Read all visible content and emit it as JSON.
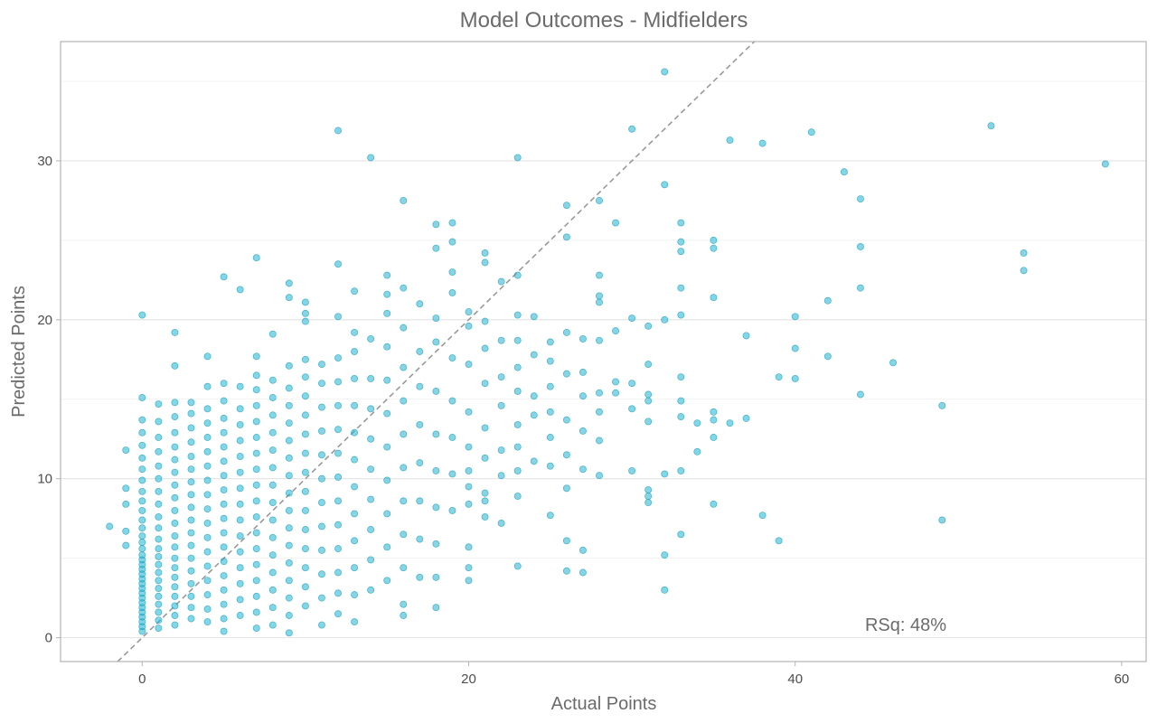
{
  "chart_data": {
    "type": "scatter",
    "title": "Model Outcomes - Midfielders",
    "xlabel": "Actual Points",
    "ylabel": "Predicted Points",
    "xlim": [
      -5,
      61.5
    ],
    "ylim": [
      -1.5,
      37.5
    ],
    "xticks": [
      0,
      20,
      40,
      60
    ],
    "yticks": [
      0,
      10,
      20,
      30
    ],
    "grid": true,
    "reference_line": {
      "style": "dashed",
      "slope": 1,
      "intercept": 0,
      "color": "#999999"
    },
    "annotation": "RSq: 48%",
    "point_color": "#1fb5d3",
    "point_stroke": "#1199b5",
    "points": [
      [
        -2,
        7.0
      ],
      [
        -1,
        5.8
      ],
      [
        -1,
        6.7
      ],
      [
        -1,
        8.4
      ],
      [
        -1,
        9.4
      ],
      [
        -1,
        11.8
      ],
      [
        0,
        0.4
      ],
      [
        0,
        0.7
      ],
      [
        0,
        1.0
      ],
      [
        0,
        1.3
      ],
      [
        0,
        1.6
      ],
      [
        0,
        1.9
      ],
      [
        0,
        2.2
      ],
      [
        0,
        2.5
      ],
      [
        0,
        2.8
      ],
      [
        0,
        3.1
      ],
      [
        0,
        3.4
      ],
      [
        0,
        3.7
      ],
      [
        0,
        4.0
      ],
      [
        0,
        4.3
      ],
      [
        0,
        4.6
      ],
      [
        0,
        4.9
      ],
      [
        0,
        5.2
      ],
      [
        0,
        5.6
      ],
      [
        0,
        6.0
      ],
      [
        0,
        6.4
      ],
      [
        0,
        6.9
      ],
      [
        0,
        7.4
      ],
      [
        0,
        8.0
      ],
      [
        0,
        8.6
      ],
      [
        0,
        9.2
      ],
      [
        0,
        9.9
      ],
      [
        0,
        10.6
      ],
      [
        0,
        11.3
      ],
      [
        0,
        12.1
      ],
      [
        0,
        12.9
      ],
      [
        0,
        13.7
      ],
      [
        0,
        15.1
      ],
      [
        0,
        20.3
      ],
      [
        1,
        0.6
      ],
      [
        1,
        1.1
      ],
      [
        1,
        1.6
      ],
      [
        1,
        2.1
      ],
      [
        1,
        2.6
      ],
      [
        1,
        3.1
      ],
      [
        1,
        3.6
      ],
      [
        1,
        4.1
      ],
      [
        1,
        4.6
      ],
      [
        1,
        5.1
      ],
      [
        1,
        5.6
      ],
      [
        1,
        6.2
      ],
      [
        1,
        6.9
      ],
      [
        1,
        7.6
      ],
      [
        1,
        8.4
      ],
      [
        1,
        9.2
      ],
      [
        1,
        10.0
      ],
      [
        1,
        10.8
      ],
      [
        1,
        11.7
      ],
      [
        1,
        12.6
      ],
      [
        1,
        13.6
      ],
      [
        1,
        14.7
      ],
      [
        2,
        0.8
      ],
      [
        2,
        1.4
      ],
      [
        2,
        2.0
      ],
      [
        2,
        2.6
      ],
      [
        2,
        3.2
      ],
      [
        2,
        3.8
      ],
      [
        2,
        4.4
      ],
      [
        2,
        5.0
      ],
      [
        2,
        5.7
      ],
      [
        2,
        6.4
      ],
      [
        2,
        7.2
      ],
      [
        2,
        8.0
      ],
      [
        2,
        8.8
      ],
      [
        2,
        9.6
      ],
      [
        2,
        10.4
      ],
      [
        2,
        11.2
      ],
      [
        2,
        12.0
      ],
      [
        2,
        12.9
      ],
      [
        2,
        13.9
      ],
      [
        2,
        14.8
      ],
      [
        2,
        17.1
      ],
      [
        2,
        19.2
      ],
      [
        3,
        1.2
      ],
      [
        3,
        1.9
      ],
      [
        3,
        2.6
      ],
      [
        3,
        3.4
      ],
      [
        3,
        4.2
      ],
      [
        3,
        5.0
      ],
      [
        3,
        5.8
      ],
      [
        3,
        6.6
      ],
      [
        3,
        7.4
      ],
      [
        3,
        8.2
      ],
      [
        3,
        9.0
      ],
      [
        3,
        9.8
      ],
      [
        3,
        10.6
      ],
      [
        3,
        11.4
      ],
      [
        3,
        12.3
      ],
      [
        3,
        13.2
      ],
      [
        3,
        14.1
      ],
      [
        3,
        14.8
      ],
      [
        4,
        1.0
      ],
      [
        4,
        1.8
      ],
      [
        4,
        2.7
      ],
      [
        4,
        3.6
      ],
      [
        4,
        4.5
      ],
      [
        4,
        5.4
      ],
      [
        4,
        6.3
      ],
      [
        4,
        7.2
      ],
      [
        4,
        8.1
      ],
      [
        4,
        9.0
      ],
      [
        4,
        9.9
      ],
      [
        4,
        10.8
      ],
      [
        4,
        11.7
      ],
      [
        4,
        12.6
      ],
      [
        4,
        13.5
      ],
      [
        4,
        14.4
      ],
      [
        4,
        15.8
      ],
      [
        4,
        17.7
      ],
      [
        5,
        0.4
      ],
      [
        5,
        1.2
      ],
      [
        5,
        2.1
      ],
      [
        5,
        3.0
      ],
      [
        5,
        3.9
      ],
      [
        5,
        4.8
      ],
      [
        5,
        5.7
      ],
      [
        5,
        6.6
      ],
      [
        5,
        7.5
      ],
      [
        5,
        8.4
      ],
      [
        5,
        9.3
      ],
      [
        5,
        10.2
      ],
      [
        5,
        11.1
      ],
      [
        5,
        12.0
      ],
      [
        5,
        12.9
      ],
      [
        5,
        13.8
      ],
      [
        5,
        14.9
      ],
      [
        5,
        16.0
      ],
      [
        5,
        22.7
      ],
      [
        6,
        1.4
      ],
      [
        6,
        2.4
      ],
      [
        6,
        3.4
      ],
      [
        6,
        4.4
      ],
      [
        6,
        5.4
      ],
      [
        6,
        6.4
      ],
      [
        6,
        7.4
      ],
      [
        6,
        8.4
      ],
      [
        6,
        9.4
      ],
      [
        6,
        10.4
      ],
      [
        6,
        11.4
      ],
      [
        6,
        12.4
      ],
      [
        6,
        13.4
      ],
      [
        6,
        14.4
      ],
      [
        6,
        15.8
      ],
      [
        6,
        21.9
      ],
      [
        7,
        0.6
      ],
      [
        7,
        1.6
      ],
      [
        7,
        2.6
      ],
      [
        7,
        3.6
      ],
      [
        7,
        4.6
      ],
      [
        7,
        5.6
      ],
      [
        7,
        6.6
      ],
      [
        7,
        7.6
      ],
      [
        7,
        8.6
      ],
      [
        7,
        9.6
      ],
      [
        7,
        10.6
      ],
      [
        7,
        11.6
      ],
      [
        7,
        12.6
      ],
      [
        7,
        13.6
      ],
      [
        7,
        14.6
      ],
      [
        7,
        15.6
      ],
      [
        7,
        16.5
      ],
      [
        7,
        17.7
      ],
      [
        7,
        23.9
      ],
      [
        8,
        0.8
      ],
      [
        8,
        1.9
      ],
      [
        8,
        3.0
      ],
      [
        8,
        4.1
      ],
      [
        8,
        5.2
      ],
      [
        8,
        6.3
      ],
      [
        8,
        7.4
      ],
      [
        8,
        8.5
      ],
      [
        8,
        9.6
      ],
      [
        8,
        10.7
      ],
      [
        8,
        11.8
      ],
      [
        8,
        12.9
      ],
      [
        8,
        14.0
      ],
      [
        8,
        15.1
      ],
      [
        8,
        16.2
      ],
      [
        8,
        19.1
      ],
      [
        9,
        0.3
      ],
      [
        9,
        1.4
      ],
      [
        9,
        2.5
      ],
      [
        9,
        3.6
      ],
      [
        9,
        4.7
      ],
      [
        9,
        5.8
      ],
      [
        9,
        6.9
      ],
      [
        9,
        8.0
      ],
      [
        9,
        9.1
      ],
      [
        9,
        10.2
      ],
      [
        9,
        11.3
      ],
      [
        9,
        12.4
      ],
      [
        9,
        13.5
      ],
      [
        9,
        14.6
      ],
      [
        9,
        15.7
      ],
      [
        9,
        17.1
      ],
      [
        9,
        21.4
      ],
      [
        9,
        22.3
      ],
      [
        10,
        2.0
      ],
      [
        10,
        3.2
      ],
      [
        10,
        4.4
      ],
      [
        10,
        5.6
      ],
      [
        10,
        6.8
      ],
      [
        10,
        8.0
      ],
      [
        10,
        9.2
      ],
      [
        10,
        10.4
      ],
      [
        10,
        11.6
      ],
      [
        10,
        12.8
      ],
      [
        10,
        14.0
      ],
      [
        10,
        15.2
      ],
      [
        10,
        16.4
      ],
      [
        10,
        17.5
      ],
      [
        10,
        19.9
      ],
      [
        10,
        20.4
      ],
      [
        10,
        21.1
      ],
      [
        11,
        0.8
      ],
      [
        11,
        2.5
      ],
      [
        11,
        4.0
      ],
      [
        11,
        5.5
      ],
      [
        11,
        7.0
      ],
      [
        11,
        8.5
      ],
      [
        11,
        10.0
      ],
      [
        11,
        11.5
      ],
      [
        11,
        13.0
      ],
      [
        11,
        14.5
      ],
      [
        11,
        16.0
      ],
      [
        11,
        17.2
      ],
      [
        12,
        1.5
      ],
      [
        12,
        2.8
      ],
      [
        12,
        4.1
      ],
      [
        12,
        5.6
      ],
      [
        12,
        7.1
      ],
      [
        12,
        8.6
      ],
      [
        12,
        10.1
      ],
      [
        12,
        11.6
      ],
      [
        12,
        13.1
      ],
      [
        12,
        14.6
      ],
      [
        12,
        16.1
      ],
      [
        12,
        17.6
      ],
      [
        12,
        20.2
      ],
      [
        12,
        23.5
      ],
      [
        12,
        31.9
      ],
      [
        13,
        1.0
      ],
      [
        13,
        2.7
      ],
      [
        13,
        4.4
      ],
      [
        13,
        6.1
      ],
      [
        13,
        7.8
      ],
      [
        13,
        9.5
      ],
      [
        13,
        11.2
      ],
      [
        13,
        12.9
      ],
      [
        13,
        14.6
      ],
      [
        13,
        16.3
      ],
      [
        13,
        18.0
      ],
      [
        13,
        19.2
      ],
      [
        13,
        21.8
      ],
      [
        14,
        3.0
      ],
      [
        14,
        4.9
      ],
      [
        14,
        6.8
      ],
      [
        14,
        8.7
      ],
      [
        14,
        10.6
      ],
      [
        14,
        12.5
      ],
      [
        14,
        14.4
      ],
      [
        14,
        16.3
      ],
      [
        14,
        18.8
      ],
      [
        14,
        30.2
      ],
      [
        15,
        3.6
      ],
      [
        15,
        5.7
      ],
      [
        15,
        7.8
      ],
      [
        15,
        9.9
      ],
      [
        15,
        12.0
      ],
      [
        15,
        14.1
      ],
      [
        15,
        16.2
      ],
      [
        15,
        18.3
      ],
      [
        15,
        20.4
      ],
      [
        15,
        21.6
      ],
      [
        15,
        22.8
      ],
      [
        16,
        1.4
      ],
      [
        16,
        2.1
      ],
      [
        16,
        4.4
      ],
      [
        16,
        6.5
      ],
      [
        16,
        8.6
      ],
      [
        16,
        10.7
      ],
      [
        16,
        12.8
      ],
      [
        16,
        14.9
      ],
      [
        16,
        17.0
      ],
      [
        16,
        19.5
      ],
      [
        16,
        22.0
      ],
      [
        16,
        27.5
      ],
      [
        17,
        3.8
      ],
      [
        17,
        6.2
      ],
      [
        17,
        8.6
      ],
      [
        17,
        11.0
      ],
      [
        17,
        13.4
      ],
      [
        17,
        15.8
      ],
      [
        17,
        18.0
      ],
      [
        17,
        21.0
      ],
      [
        18,
        1.9
      ],
      [
        18,
        3.8
      ],
      [
        18,
        5.9
      ],
      [
        18,
        8.2
      ],
      [
        18,
        10.5
      ],
      [
        18,
        12.8
      ],
      [
        18,
        15.5
      ],
      [
        18,
        18.6
      ],
      [
        18,
        20.1
      ],
      [
        18,
        24.5
      ],
      [
        18,
        26.0
      ],
      [
        19,
        8.0
      ],
      [
        19,
        10.3
      ],
      [
        19,
        12.6
      ],
      [
        19,
        14.9
      ],
      [
        19,
        17.6
      ],
      [
        19,
        21.7
      ],
      [
        19,
        23.0
      ],
      [
        19,
        24.9
      ],
      [
        19,
        26.1
      ],
      [
        20,
        3.6
      ],
      [
        20,
        4.4
      ],
      [
        20,
        5.7
      ],
      [
        20,
        8.4
      ],
      [
        20,
        9.5
      ],
      [
        20,
        10.5
      ],
      [
        20,
        12.0
      ],
      [
        20,
        14.2
      ],
      [
        20,
        17.2
      ],
      [
        20,
        19.6
      ],
      [
        20,
        20.5
      ],
      [
        21,
        7.6
      ],
      [
        21,
        8.6
      ],
      [
        21,
        9.1
      ],
      [
        21,
        11.3
      ],
      [
        21,
        13.2
      ],
      [
        21,
        16.0
      ],
      [
        21,
        18.2
      ],
      [
        21,
        19.9
      ],
      [
        21,
        23.6
      ],
      [
        21,
        24.2
      ],
      [
        22,
        7.2
      ],
      [
        22,
        10.2
      ],
      [
        22,
        11.8
      ],
      [
        22,
        14.6
      ],
      [
        22,
        16.4
      ],
      [
        22,
        18.7
      ],
      [
        22,
        22.4
      ],
      [
        23,
        4.5
      ],
      [
        23,
        8.9
      ],
      [
        23,
        10.5
      ],
      [
        23,
        12.0
      ],
      [
        23,
        13.4
      ],
      [
        23,
        15.5
      ],
      [
        23,
        17.0
      ],
      [
        23,
        18.7
      ],
      [
        23,
        20.3
      ],
      [
        23,
        22.8
      ],
      [
        23,
        30.2
      ],
      [
        24,
        11.1
      ],
      [
        24,
        14.0
      ],
      [
        24,
        15.2
      ],
      [
        24,
        17.8
      ],
      [
        24,
        20.2
      ],
      [
        25,
        7.7
      ],
      [
        25,
        10.8
      ],
      [
        25,
        12.6
      ],
      [
        25,
        14.2
      ],
      [
        25,
        15.8
      ],
      [
        25,
        17.4
      ],
      [
        25,
        18.6
      ],
      [
        26,
        4.2
      ],
      [
        26,
        6.1
      ],
      [
        26,
        9.4
      ],
      [
        26,
        11.5
      ],
      [
        26,
        13.7
      ],
      [
        26,
        16.6
      ],
      [
        26,
        19.2
      ],
      [
        26,
        25.2
      ],
      [
        26,
        27.2
      ],
      [
        27,
        4.1
      ],
      [
        27,
        5.5
      ],
      [
        27,
        10.6
      ],
      [
        27,
        13.0
      ],
      [
        27,
        15.2
      ],
      [
        27,
        16.7
      ],
      [
        27,
        18.8
      ],
      [
        28,
        10.2
      ],
      [
        28,
        12.4
      ],
      [
        28,
        14.2
      ],
      [
        28,
        15.4
      ],
      [
        28,
        18.7
      ],
      [
        28,
        21.1
      ],
      [
        28,
        21.5
      ],
      [
        28,
        22.8
      ],
      [
        28,
        27.5
      ],
      [
        29,
        15.4
      ],
      [
        29,
        16.1
      ],
      [
        29,
        19.3
      ],
      [
        29,
        26.1
      ],
      [
        30,
        10.5
      ],
      [
        30,
        14.4
      ],
      [
        30,
        16.0
      ],
      [
        30,
        20.1
      ],
      [
        30,
        32.0
      ],
      [
        31,
        8.5
      ],
      [
        31,
        8.9
      ],
      [
        31,
        9.3
      ],
      [
        31,
        13.6
      ],
      [
        31,
        14.9
      ],
      [
        31,
        15.3
      ],
      [
        31,
        17.2
      ],
      [
        31,
        19.6
      ],
      [
        32,
        3.0
      ],
      [
        32,
        5.2
      ],
      [
        32,
        10.3
      ],
      [
        32,
        20.0
      ],
      [
        32,
        28.5
      ],
      [
        32,
        35.6
      ],
      [
        33,
        6.5
      ],
      [
        33,
        10.5
      ],
      [
        33,
        13.9
      ],
      [
        33,
        14.9
      ],
      [
        33,
        16.4
      ],
      [
        33,
        20.3
      ],
      [
        33,
        22.0
      ],
      [
        33,
        24.3
      ],
      [
        33,
        24.9
      ],
      [
        33,
        26.1
      ],
      [
        34,
        11.7
      ],
      [
        34,
        13.5
      ],
      [
        35,
        8.4
      ],
      [
        35,
        12.6
      ],
      [
        35,
        13.7
      ],
      [
        35,
        14.2
      ],
      [
        35,
        21.4
      ],
      [
        35,
        24.5
      ],
      [
        35,
        25.0
      ],
      [
        36,
        13.5
      ],
      [
        36,
        31.3
      ],
      [
        37,
        13.8
      ],
      [
        37,
        19.0
      ],
      [
        38,
        7.7
      ],
      [
        38,
        31.1
      ],
      [
        39,
        6.1
      ],
      [
        39,
        16.4
      ],
      [
        40,
        16.3
      ],
      [
        40,
        18.2
      ],
      [
        40,
        20.2
      ],
      [
        41,
        31.8
      ],
      [
        42,
        17.7
      ],
      [
        42,
        21.2
      ],
      [
        43,
        29.3
      ],
      [
        44,
        15.3
      ],
      [
        44,
        22.0
      ],
      [
        44,
        24.6
      ],
      [
        44,
        27.6
      ],
      [
        46,
        17.3
      ],
      [
        49,
        7.4
      ],
      [
        49,
        14.6
      ],
      [
        52,
        32.2
      ],
      [
        54,
        23.1
      ],
      [
        54,
        24.2
      ],
      [
        59,
        29.8
      ]
    ]
  }
}
